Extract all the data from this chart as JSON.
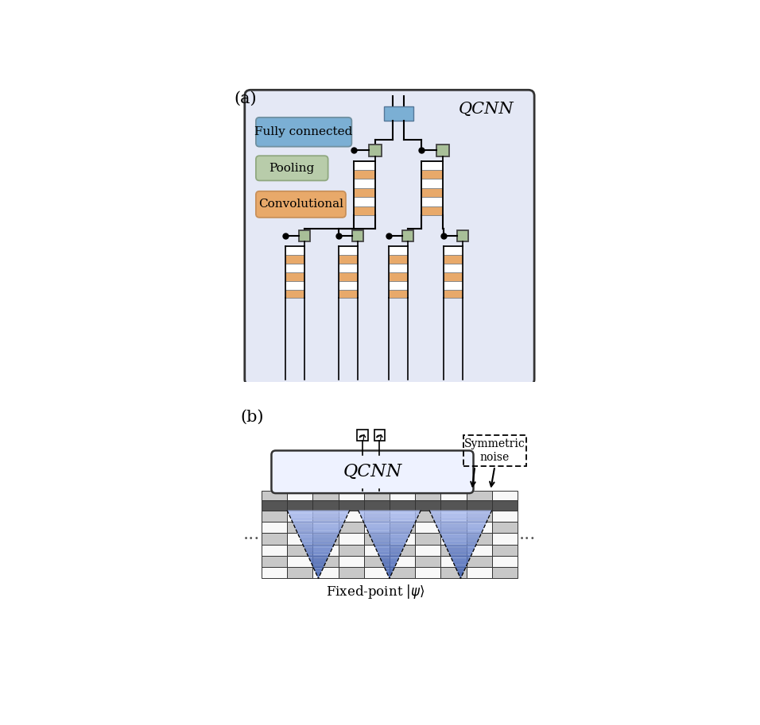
{
  "fig_width": 9.56,
  "fig_height": 9.13,
  "panel_a_label": "(a)",
  "panel_b_label": "(b)",
  "qcnn_label_a": "QCNN",
  "fully_connected_label": "Fully connected",
  "pooling_label": "Pooling",
  "convolutional_label": "Convolutional",
  "qcnn_label_b": "QCNN",
  "symmetric_noise_label": "Symmetric\nnoise",
  "fixed_point_label": "Fixed-point $|\\psi\\rangle$",
  "color_fc": "#7bafd4",
  "color_pool": "#b8ccaa",
  "color_conv": "#e8a96a",
  "color_bg_a": "#e4e8f5",
  "color_pool_box": "#a8bf98",
  "color_fc_box": "#6fa8d0",
  "color_gray_light": "#c8c8c8",
  "color_gray_dark": "#555555",
  "color_gray_mid": "#aaaaaa",
  "color_white_cell": "#f8f8f8",
  "color_blue_cone": "#5577cc",
  "color_blue_cone_light": "#aabbee"
}
